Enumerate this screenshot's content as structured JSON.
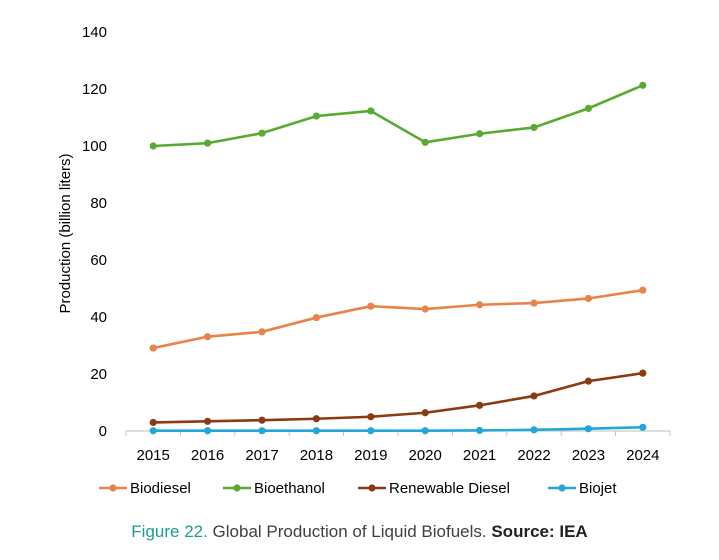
{
  "chart_data": {
    "type": "line",
    "title": "",
    "xlabel": "",
    "ylabel": "Production (billion liters)",
    "ylim": [
      0,
      140
    ],
    "yticks": [
      "0",
      "20",
      "40",
      "60",
      "80",
      "100",
      "120",
      "140"
    ],
    "categories": [
      "2015",
      "2016",
      "2017",
      "2018",
      "2019",
      "2020",
      "2021",
      "2022",
      "2023",
      "2024"
    ],
    "grid": false,
    "legend_position": "bottom",
    "series": [
      {
        "name": "Biodiesel",
        "color": "#e8834a",
        "values": [
          29.1,
          33.1,
          34.8,
          39.8,
          43.8,
          42.8,
          44.3,
          44.9,
          46.5,
          49.4
        ]
      },
      {
        "name": "Bioethanol",
        "color": "#5aaa32",
        "values": [
          100.0,
          101.0,
          104.5,
          110.5,
          112.3,
          101.3,
          104.3,
          106.5,
          113.2,
          121.3
        ]
      },
      {
        "name": "Renewable Diesel",
        "color": "#8b3a12",
        "values": [
          3.0,
          3.4,
          3.8,
          4.3,
          5.0,
          6.4,
          9.0,
          12.3,
          17.5,
          20.3
        ]
      },
      {
        "name": "Biojet",
        "color": "#24a7d6",
        "values": [
          0.1,
          0.1,
          0.1,
          0.1,
          0.1,
          0.1,
          0.2,
          0.4,
          0.8,
          1.3
        ]
      }
    ]
  },
  "caption": {
    "figure_number": "Figure 22.",
    "text": " Global Production of Liquid Biofuels. ",
    "source": "Source: IEA"
  }
}
